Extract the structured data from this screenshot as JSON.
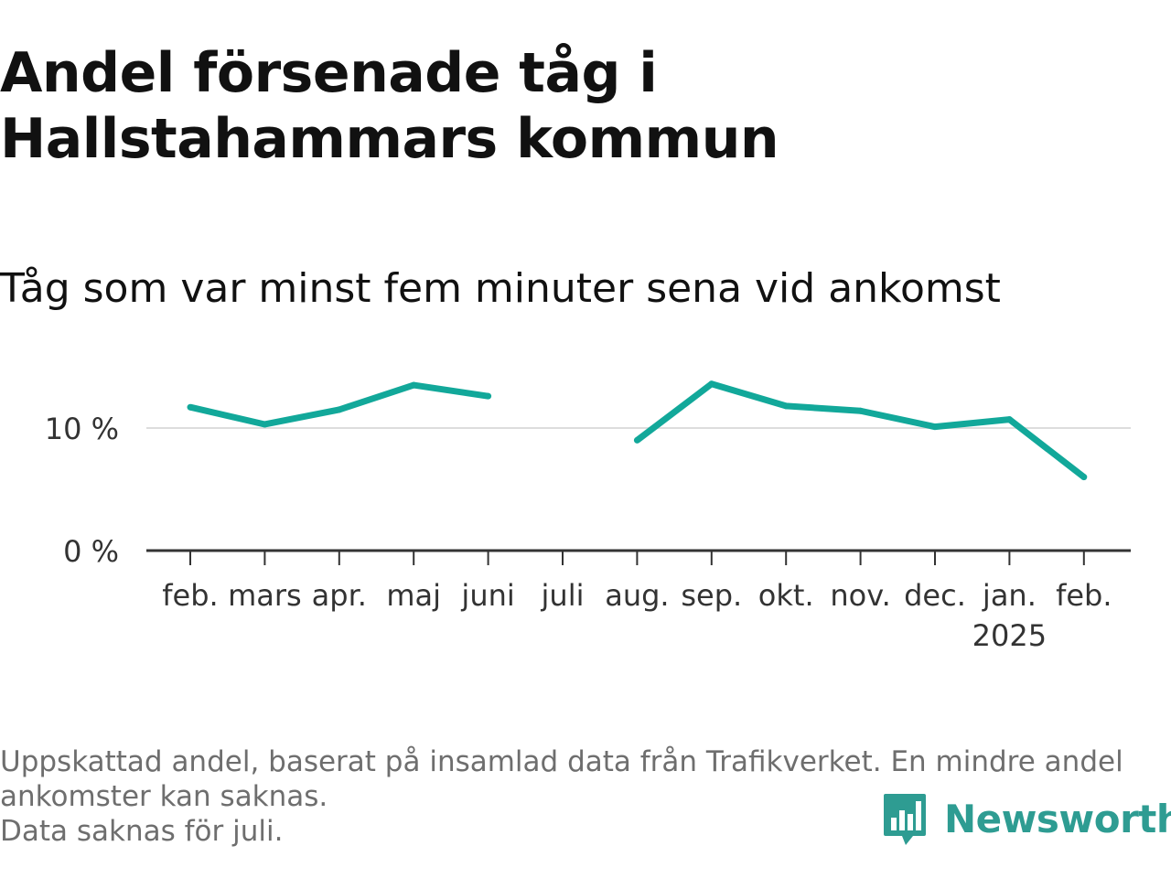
{
  "header": {
    "title": "Andel försenade tåg i Hallstahammars kommun",
    "subtitle": "Tåg som var minst fem minuter sena vid ankomst"
  },
  "chart_data": {
    "type": "line",
    "categories": [
      "feb.",
      "mars",
      "apr.",
      "maj",
      "juni",
      "juli",
      "aug.",
      "sep.",
      "okt.",
      "nov.",
      "dec.",
      "jan.",
      "feb."
    ],
    "category_sublabels": [
      "",
      "",
      "",
      "",
      "",
      "",
      "",
      "",
      "",
      "",
      "",
      "2025",
      ""
    ],
    "series": [
      {
        "values": [
          11.7,
          10.3,
          11.5,
          13.5,
          12.6,
          null,
          9.0,
          13.6,
          11.8,
          11.4,
          10.1,
          10.7,
          6.0
        ],
        "color": "#12a89a"
      }
    ],
    "y_ticks": [
      0,
      10
    ],
    "y_tick_labels": [
      "0 %",
      "10 %"
    ],
    "ylim": [
      0,
      15
    ],
    "grid": true,
    "legend": "none",
    "gridline_color": "#dddddd",
    "axis_color": "#333333"
  },
  "footer": {
    "note_line1": "Uppskattad andel, baserat på insamlad data från Trafikverket. En mindre andel",
    "note_line2": "ankomster kan saknas.",
    "note_line3": "Data saknas för juli.",
    "brand": "Newsworthy",
    "brand_color": "#2e9c92",
    "logo_icon": "bar-chart-speech-bubble-icon"
  }
}
